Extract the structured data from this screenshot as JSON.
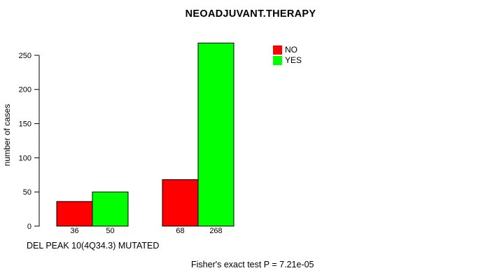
{
  "title": "NEOADJUVANT.THERAPY",
  "chart_data": {
    "type": "bar",
    "title": "NEOADJUVANT.THERAPY",
    "ylabel": "number of cases",
    "xlabel": "DEL PEAK 10(4Q34.3) MUTATED",
    "categories": [
      "group-1",
      "group-2"
    ],
    "series": [
      {
        "name": "NO",
        "color": "#FF0000",
        "values": [
          36,
          68
        ]
      },
      {
        "name": "YES",
        "color": "#00FF00",
        "values": [
          50,
          268
        ]
      }
    ],
    "bar_value_labels": [
      "36",
      "50",
      "68",
      "268"
    ],
    "yticks": [
      0,
      50,
      100,
      150,
      200,
      250
    ],
    "ylim": [
      0,
      270
    ],
    "grid": false,
    "legend_position": "top-right-inside",
    "annotation": "Fisher's exact test P = 7.21e-05",
    "bar_border_color": "#000000"
  },
  "legend": {
    "entries": [
      {
        "label": "NO",
        "color": "#FF0000"
      },
      {
        "label": "YES",
        "color": "#00FF00"
      }
    ]
  }
}
